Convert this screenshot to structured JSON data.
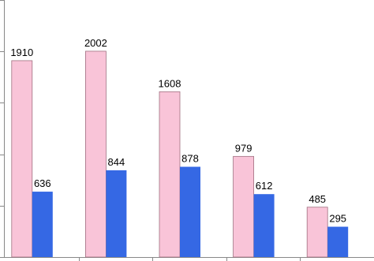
{
  "chart_data": {
    "type": "bar",
    "categories": [
      null,
      null,
      null,
      null,
      null
    ],
    "series": [
      {
        "color": "#f9c4d8",
        "values": [
          1910,
          2002,
          1608,
          979,
          485
        ]
      },
      {
        "color": "#3568e4",
        "values": [
          636,
          844,
          878,
          612,
          295
        ]
      }
    ],
    "ylim": [
      0,
      2500
    ],
    "yticks": [
      0,
      500,
      1000,
      1500,
      2000,
      2500
    ]
  }
}
